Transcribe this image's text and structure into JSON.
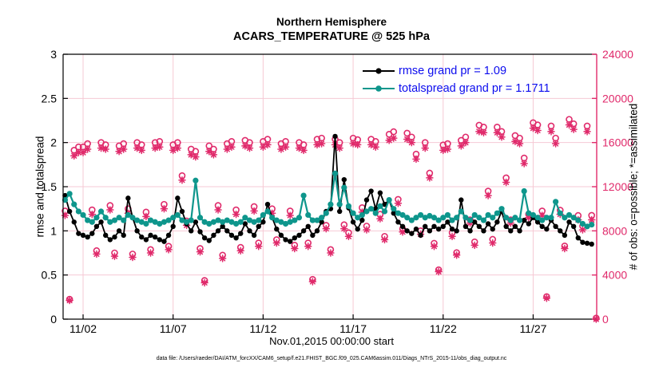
{
  "figure": {
    "title_line1": "Northern Hemisphere",
    "title_line2": "ACARS_TEMPERATURE @ 525 hPa",
    "ylabel_left": "rmse and totalspread",
    "ylabel_right": "# of obs: o=possible; *=assimilated",
    "xlabel": "Nov.01,2015 00:00:00 start",
    "caption": "data file: /Users/raeder/DAI/ATM_forcXX/CAM6_setup/f.e21.FHIST_BGC.f09_025.CAM6assim.011/Diags_NTrS_2015-11/obs_diag_output.nc"
  },
  "legend": {
    "rmse_label": "rmse grand pr = 1.09",
    "totalspread_label": "totalspread grand pr = 1.1711"
  },
  "colors": {
    "rmse": "#000000",
    "totalspread": "#0e968c",
    "obs": "#e02a6b",
    "grid": "#f6c9d4",
    "legend_text": "#0b0bee",
    "axis_left": "#000000",
    "axis_right": "#e02a6b"
  },
  "chart_data": {
    "type": "line",
    "x_axis": {
      "units": "day of Nov 2015, 6-hourly",
      "x_start": 1.0,
      "x_step": 0.25,
      "n_points": 119,
      "xlim": [
        0.89,
        30.53
      ],
      "tick_days": [
        2,
        7,
        12,
        17,
        22,
        27
      ],
      "tick_labels": [
        "11/02",
        "11/07",
        "11/12",
        "11/17",
        "11/22",
        "11/27"
      ]
    },
    "y_left": {
      "label": "rmse and totalspread",
      "ylim": [
        0,
        3
      ],
      "tick_values": [
        0,
        0.5,
        1,
        1.5,
        2,
        2.5,
        3
      ],
      "tick_labels": [
        "0",
        "0.5",
        "1",
        "1.5",
        "2",
        "2.5",
        "3"
      ]
    },
    "y_right": {
      "label": "# of obs: o=possible; *=assimilated",
      "ylim": [
        0,
        24000
      ],
      "tick_values": [
        0,
        4000,
        8000,
        12000,
        16000,
        20000,
        24000
      ],
      "tick_labels": [
        "0",
        "4000",
        "8000",
        "12000",
        "16000",
        "20000",
        "24000"
      ]
    },
    "grid": true,
    "series": [
      {
        "name": "rmse",
        "axis": "left",
        "style": "line+dot",
        "values": [
          1.4,
          1.22,
          1.1,
          0.97,
          0.95,
          0.93,
          0.97,
          1.05,
          1.1,
          0.95,
          0.9,
          0.93,
          1.0,
          0.95,
          1.37,
          1.15,
          1.0,
          0.93,
          0.9,
          0.95,
          0.93,
          0.9,
          0.88,
          0.95,
          1.05,
          1.37,
          1.22,
          1.08,
          1.0,
          1.1,
          0.99,
          0.92,
          0.89,
          0.95,
          1.0,
          1.05,
          1.0,
          0.95,
          0.92,
          0.97,
          1.08,
          1.0,
          0.95,
          1.05,
          1.1,
          1.3,
          1.15,
          1.02,
          0.95,
          0.9,
          0.88,
          0.92,
          0.95,
          1.0,
          1.05,
          0.95,
          1.0,
          1.1,
          1.22,
          1.25,
          2.07,
          1.22,
          1.58,
          1.26,
          1.1,
          1.02,
          1.12,
          1.35,
          1.45,
          1.25,
          1.43,
          1.3,
          1.35,
          1.2,
          1.1,
          1.05,
          1.0,
          0.97,
          1.02,
          0.95,
          1.05,
          1.0,
          1.05,
          1.02,
          1.05,
          1.1,
          1.02,
          1.0,
          1.35,
          1.05,
          1.0,
          1.1,
          1.05,
          1.0,
          1.08,
          1.02,
          1.1,
          1.22,
          1.05,
          1.0,
          1.05,
          1.0,
          1.12,
          1.08,
          1.15,
          1.1,
          1.05,
          1.02,
          1.12,
          1.05,
          1.0,
          0.95,
          1.1,
          1.05,
          0.92,
          0.87,
          0.86,
          0.85,
          null
        ]
      },
      {
        "name": "totalspread",
        "axis": "left",
        "style": "line+dot",
        "values": [
          1.35,
          1.42,
          1.3,
          1.22,
          1.18,
          1.12,
          1.1,
          1.15,
          1.22,
          1.15,
          1.1,
          1.12,
          1.15,
          1.12,
          1.18,
          1.15,
          1.12,
          1.1,
          1.08,
          1.12,
          1.1,
          1.08,
          1.1,
          1.12,
          1.15,
          1.18,
          1.12,
          1.1,
          1.12,
          1.57,
          1.15,
          1.1,
          1.08,
          1.1,
          1.12,
          1.1,
          1.12,
          1.1,
          1.08,
          1.1,
          1.15,
          1.12,
          1.1,
          1.12,
          1.18,
          1.22,
          1.15,
          1.12,
          1.1,
          1.08,
          1.1,
          1.12,
          1.15,
          1.4,
          1.18,
          1.12,
          1.12,
          1.15,
          1.2,
          1.3,
          1.65,
          1.3,
          1.49,
          1.28,
          1.2,
          1.15,
          1.18,
          1.22,
          1.25,
          1.2,
          1.28,
          1.22,
          1.35,
          1.25,
          1.2,
          1.18,
          1.15,
          1.12,
          1.15,
          1.18,
          1.15,
          1.17,
          1.15,
          1.12,
          1.15,
          1.18,
          1.12,
          1.15,
          1.22,
          1.15,
          1.12,
          1.18,
          1.15,
          1.12,
          1.18,
          1.15,
          1.2,
          1.25,
          1.15,
          1.12,
          1.15,
          1.12,
          1.45,
          1.2,
          1.18,
          1.15,
          1.12,
          1.15,
          1.15,
          1.33,
          1.2,
          1.15,
          1.18,
          1.15,
          1.12,
          1.08,
          1.05,
          1.07,
          null
        ]
      },
      {
        "name": "obs_possible",
        "axis": "right",
        "style": "scatter-circle",
        "values": [
          9800,
          1800,
          15300,
          15600,
          15600,
          15900,
          9900,
          6200,
          16000,
          15800,
          10300,
          6000,
          15700,
          15900,
          10000,
          5900,
          16000,
          15800,
          9700,
          6300,
          16000,
          16100,
          10400,
          6600,
          15800,
          16000,
          13000,
          8900,
          15400,
          15200,
          6400,
          3500,
          15700,
          15400,
          10300,
          5800,
          15900,
          16100,
          9900,
          6500,
          16200,
          16000,
          10200,
          6900,
          16100,
          16300,
          10000,
          7200,
          15900,
          16100,
          9800,
          6700,
          16000,
          15800,
          6900,
          3600,
          16300,
          16400,
          8500,
          6300,
          16300,
          16000,
          8550,
          7830,
          16400,
          16260,
          10100,
          8430,
          16300,
          16100,
          9500,
          7500,
          16750,
          16980,
          10850,
          8180,
          16850,
          16500,
          14950,
          8000,
          16000,
          13230,
          6870,
          4470,
          15780,
          15900,
          7830,
          6020,
          16200,
          16500,
          9000,
          7000,
          17570,
          17400,
          11600,
          7230,
          17400,
          17000,
          12800,
          9000,
          16630,
          16400,
          14600,
          9500,
          17800,
          17600,
          9800,
          2040,
          17500,
          16400,
          9870,
          6630,
          18100,
          17700,
          9390,
          8430,
          17500,
          9400,
          100
        ]
      },
      {
        "name": "obs_assimilated",
        "axis": "right",
        "style": "scatter-asterisk",
        "values": [
          9400,
          1700,
          14800,
          15100,
          15100,
          15400,
          9500,
          5900,
          15500,
          15400,
          9900,
          5700,
          15200,
          15400,
          9600,
          5600,
          15500,
          15300,
          9300,
          6000,
          15500,
          15600,
          10000,
          6300,
          15300,
          15500,
          12600,
          8500,
          14900,
          14700,
          6100,
          3300,
          15200,
          14900,
          9900,
          5500,
          15400,
          15600,
          9500,
          6200,
          15700,
          15500,
          9800,
          6600,
          15600,
          15800,
          9600,
          6900,
          15400,
          15600,
          9400,
          6400,
          15500,
          15300,
          6600,
          3400,
          15800,
          15900,
          8200,
          6000,
          15800,
          15500,
          8200,
          7500,
          15900,
          15800,
          9700,
          8100,
          15800,
          15600,
          9100,
          7200,
          16200,
          16400,
          10500,
          7900,
          16300,
          16000,
          14500,
          7700,
          15500,
          12800,
          6600,
          4300,
          15300,
          15400,
          7500,
          5800,
          15700,
          16000,
          8700,
          6700,
          17000,
          16900,
          11200,
          6900,
          16900,
          16500,
          12400,
          8700,
          16100,
          15900,
          14100,
          9200,
          17300,
          17100,
          9400,
          1900,
          17000,
          15900,
          9500,
          6400,
          17600,
          17200,
          9000,
          8100,
          17000,
          9000,
          0
        ]
      }
    ]
  }
}
